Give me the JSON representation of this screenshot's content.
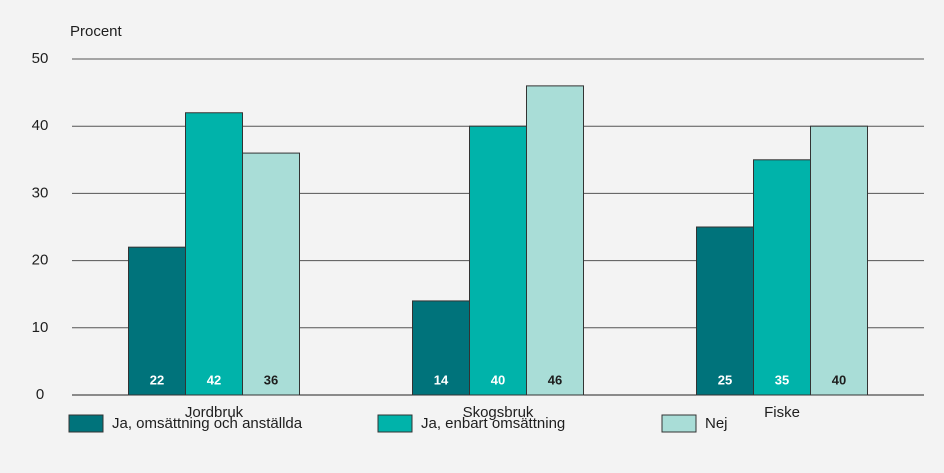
{
  "chart_data": {
    "type": "bar",
    "y_label": "Procent",
    "categories": [
      "Jordbruk",
      "Skogsbruk",
      "Fiske"
    ],
    "series": [
      {
        "name": "Ja, omsättning och anställda",
        "color": "#00737b",
        "values": [
          22,
          14,
          25
        ]
      },
      {
        "name": "Ja, enbart omsättning",
        "color": "#00b3aa",
        "values": [
          42,
          40,
          35
        ]
      },
      {
        "name": "Nej",
        "color": "#a9ddd7",
        "values": [
          36,
          46,
          40
        ]
      }
    ],
    "ylim": [
      0,
      50
    ],
    "yticks": [
      0,
      10,
      20,
      30,
      40,
      50
    ],
    "grid": true,
    "legend": "bottom"
  }
}
